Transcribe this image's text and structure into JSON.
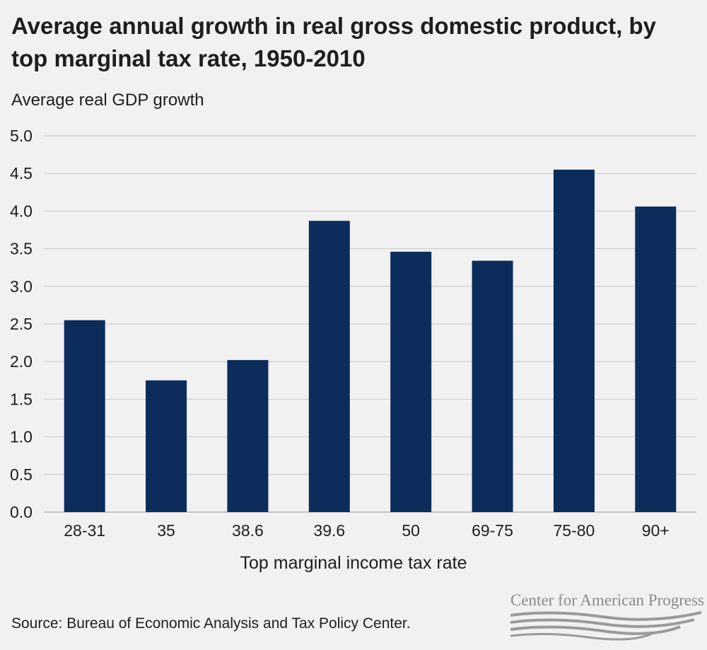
{
  "chart_data": {
    "type": "bar",
    "title": "Average annual growth in real gross domestic product, by top marginal tax rate, 1950-2010",
    "ylabel": "Average real GDP growth",
    "xlabel": "Top marginal income tax rate",
    "categories": [
      "28-31",
      "35",
      "38.6",
      "39.6",
      "50",
      "69-75",
      "75-80",
      "90+"
    ],
    "values": [
      2.55,
      1.75,
      2.02,
      3.87,
      3.46,
      3.34,
      4.55,
      4.06
    ],
    "ylim": [
      0,
      5.0
    ],
    "yticks": [
      "0.0",
      "0.5",
      "1.0",
      "1.5",
      "2.0",
      "2.5",
      "3.0",
      "3.5",
      "4.0",
      "4.5",
      "5.0"
    ],
    "grid": true,
    "bar_color": "#0c2d5c"
  },
  "source": "Source: Bureau of Economic Analysis and Tax Policy Center.",
  "logo": {
    "text": "Center for American Progress",
    "stripe_color": "#9a9a9a"
  },
  "colors": {
    "background": "#f1f1f1",
    "grid": "#c8c8c8"
  }
}
